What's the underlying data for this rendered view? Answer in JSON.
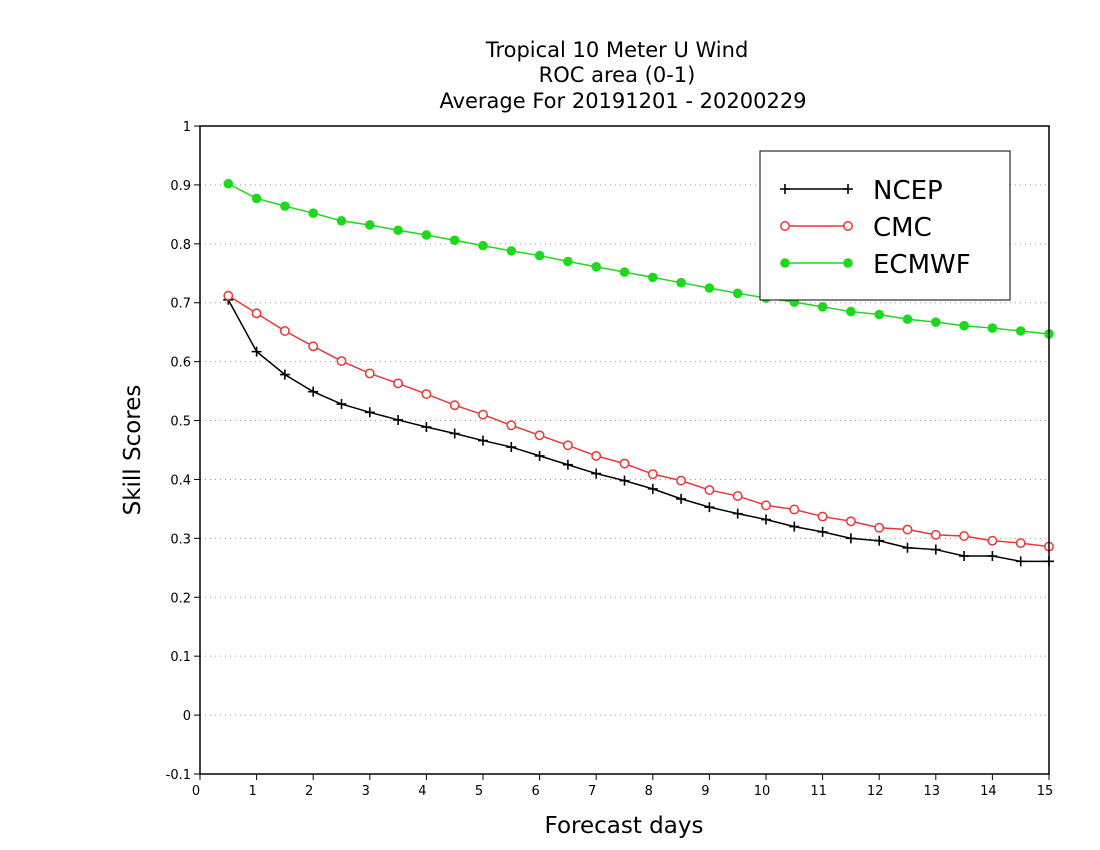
{
  "chart_data": {
    "type": "line",
    "title": [
      "Tropical 10 Meter U Wind",
      "ROC area (0-1)",
      "Average For 20191201 - 20200229"
    ],
    "xlabel": "Forecast days",
    "ylabel": "Skill Scores",
    "xlim": [
      0,
      15
    ],
    "ylim": [
      -0.1,
      1
    ],
    "xticks": [
      0,
      1,
      2,
      3,
      4,
      5,
      6,
      7,
      8,
      9,
      10,
      11,
      12,
      13,
      14,
      15
    ],
    "yticks": [
      -0.1,
      0,
      0.1,
      0.2,
      0.3,
      0.4,
      0.5,
      0.6,
      0.7,
      0.8,
      0.9,
      1
    ],
    "ytick_labels": [
      "-0.1",
      "0",
      "0.1",
      "0.2",
      "0.3",
      "0.4",
      "0.5",
      "0.6",
      "0.7",
      "0.8",
      "0.9",
      "1"
    ],
    "grid": "horizontal dotted",
    "legend_position": "top-right",
    "x": [
      0.5,
      1,
      1.5,
      2,
      2.5,
      3,
      3.5,
      4,
      4.5,
      5,
      5.5,
      6,
      6.5,
      7,
      7.5,
      8,
      8.5,
      9,
      9.5,
      10,
      10.5,
      11,
      11.5,
      12,
      12.5,
      13,
      13.5,
      14,
      14.5,
      15
    ],
    "series": [
      {
        "name": "NCEP",
        "color": "#000000",
        "marker": "plus",
        "values": [
          0.705,
          0.617,
          0.578,
          0.549,
          0.528,
          0.514,
          0.501,
          0.489,
          0.478,
          0.466,
          0.455,
          0.44,
          0.425,
          0.41,
          0.398,
          0.384,
          0.367,
          0.353,
          0.342,
          0.332,
          0.32,
          0.311,
          0.3,
          0.296,
          0.284,
          0.281,
          0.27,
          0.27,
          0.261,
          0.261
        ]
      },
      {
        "name": "CMC",
        "color": "#e8373a",
        "marker": "open-circle",
        "values": [
          0.712,
          0.682,
          0.652,
          0.626,
          0.601,
          0.58,
          0.563,
          0.545,
          0.526,
          0.51,
          0.492,
          0.475,
          0.458,
          0.44,
          0.427,
          0.409,
          0.398,
          0.382,
          0.372,
          0.356,
          0.349,
          0.337,
          0.329,
          0.318,
          0.315,
          0.306,
          0.304,
          0.296,
          0.292,
          0.286
        ]
      },
      {
        "name": "ECMWF",
        "color": "#1ed81e",
        "marker": "filled-circle",
        "values": [
          0.902,
          0.877,
          0.864,
          0.852,
          0.839,
          0.832,
          0.823,
          0.815,
          0.806,
          0.797,
          0.788,
          0.78,
          0.77,
          0.761,
          0.752,
          0.743,
          0.734,
          0.725,
          0.716,
          0.708,
          0.701,
          0.693,
          0.685,
          0.68,
          0.672,
          0.667,
          0.661,
          0.657,
          0.652,
          0.647
        ]
      }
    ]
  }
}
